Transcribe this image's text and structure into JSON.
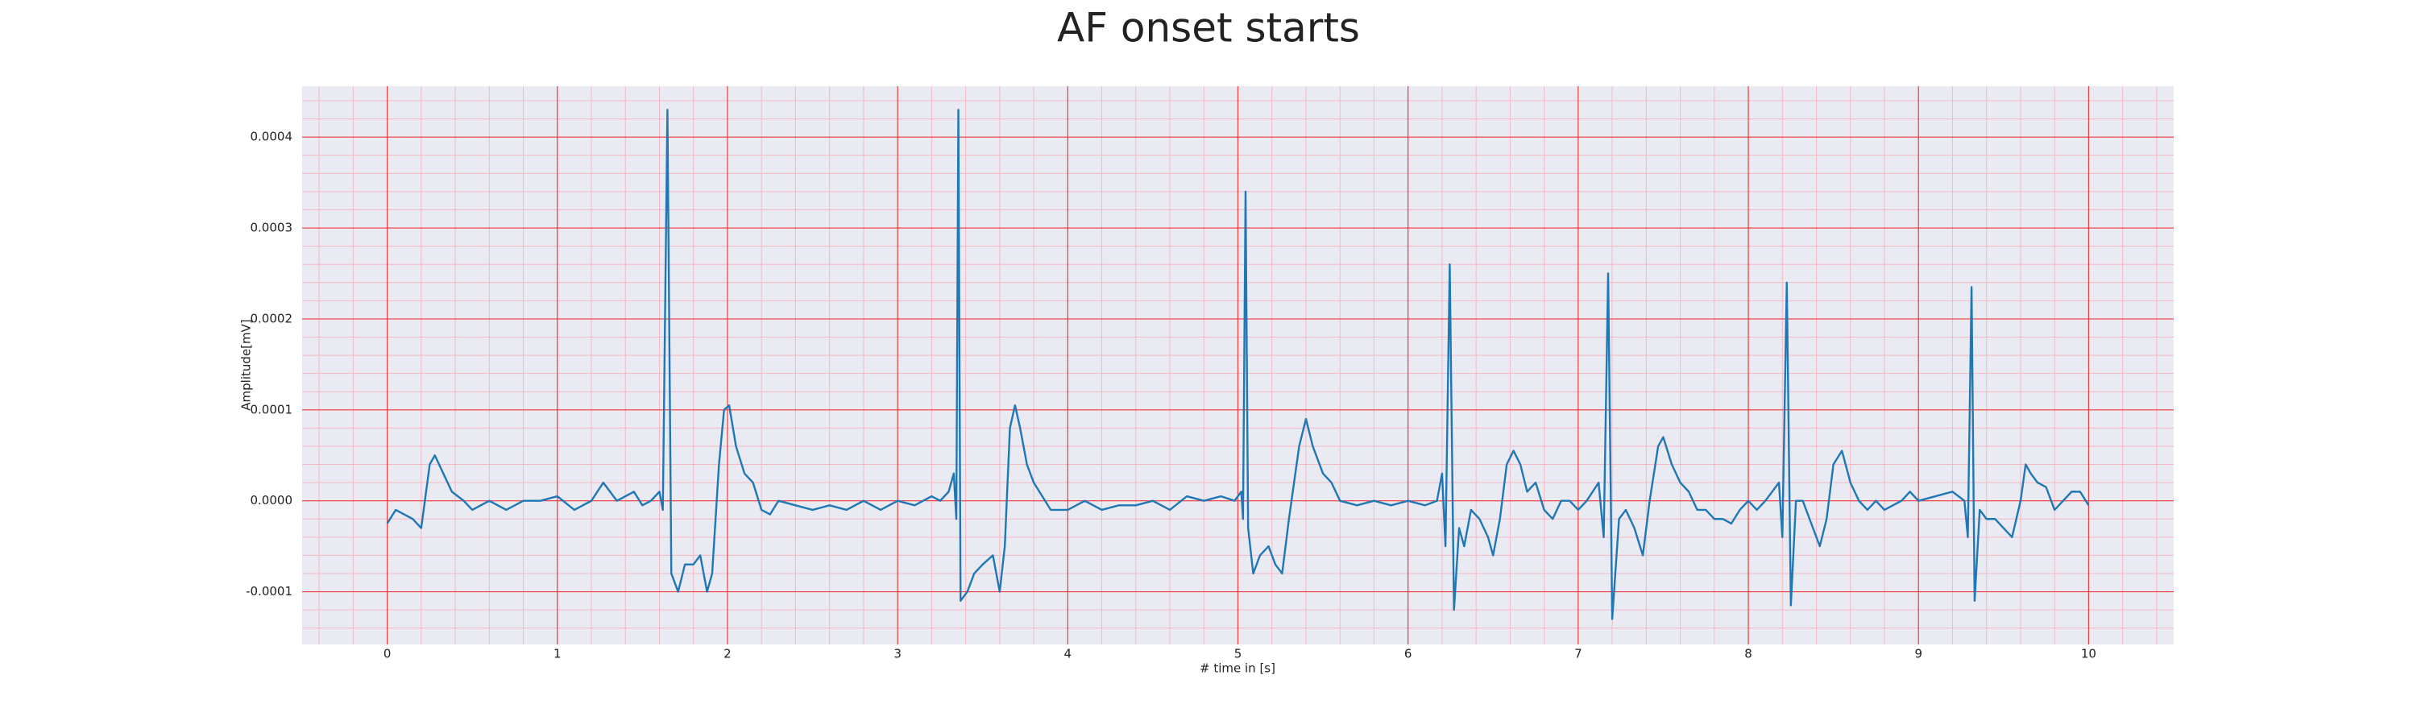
{
  "chart_data": {
    "type": "line",
    "title": "AF onset starts",
    "xlabel": "# time in [s]",
    "ylabel": "Amplitude[mV]",
    "x": [
      0,
      0.05,
      0.1,
      0.15,
      0.2,
      0.25,
      0.28,
      0.33,
      0.38,
      0.45,
      0.5,
      0.6,
      0.7,
      0.8,
      0.9,
      1.0,
      1.1,
      1.2,
      1.27,
      1.35,
      1.45,
      1.5,
      1.55,
      1.6,
      1.62,
      1.647,
      1.67,
      1.71,
      1.75,
      1.8,
      1.84,
      1.88,
      1.91,
      1.95,
      1.98,
      2.01,
      2.05,
      2.1,
      2.15,
      2.2,
      2.25,
      2.3,
      2.4,
      2.5,
      2.6,
      2.7,
      2.8,
      2.9,
      3.0,
      3.1,
      3.2,
      3.25,
      3.3,
      3.33,
      3.345,
      3.357,
      3.37,
      3.41,
      3.45,
      3.5,
      3.56,
      3.6,
      3.63,
      3.66,
      3.69,
      3.72,
      3.76,
      3.8,
      3.85,
      3.9,
      4.0,
      4.1,
      4.2,
      4.3,
      4.4,
      4.5,
      4.6,
      4.7,
      4.8,
      4.9,
      4.98,
      5.02,
      5.03,
      5.045,
      5.06,
      5.09,
      5.13,
      5.18,
      5.22,
      5.26,
      5.3,
      5.36,
      5.4,
      5.44,
      5.5,
      5.55,
      5.6,
      5.7,
      5.8,
      5.9,
      6.0,
      6.1,
      6.17,
      6.2,
      6.22,
      6.245,
      6.27,
      6.3,
      6.33,
      6.37,
      6.42,
      6.47,
      6.5,
      6.54,
      6.58,
      6.62,
      6.66,
      6.7,
      6.75,
      6.8,
      6.85,
      6.9,
      6.95,
      7.0,
      7.05,
      7.12,
      7.15,
      7.176,
      7.2,
      7.24,
      7.28,
      7.33,
      7.38,
      7.42,
      7.47,
      7.5,
      7.55,
      7.6,
      7.65,
      7.7,
      7.75,
      7.8,
      7.85,
      7.9,
      7.95,
      8.0,
      8.05,
      8.1,
      8.18,
      8.2,
      8.226,
      8.25,
      8.28,
      8.32,
      8.36,
      8.42,
      8.46,
      8.5,
      8.55,
      8.6,
      8.65,
      8.7,
      8.75,
      8.8,
      8.9,
      8.95,
      9.0,
      9.1,
      9.2,
      9.27,
      9.29,
      9.312,
      9.33,
      9.36,
      9.4,
      9.45,
      9.5,
      9.55,
      9.6,
      9.63,
      9.66,
      9.7,
      9.75,
      9.8,
      9.85,
      9.9,
      9.95,
      10.0
    ],
    "values": [
      -2.5e-05,
      -1e-05,
      -1.5e-05,
      -2e-05,
      -3e-05,
      4e-05,
      5e-05,
      3e-05,
      1e-05,
      0,
      -1e-05,
      0,
      -1e-05,
      0,
      0,
      5e-06,
      -1e-05,
      0,
      2e-05,
      0,
      1e-05,
      -5e-06,
      0,
      1e-05,
      -1e-05,
      0.00043,
      -8e-05,
      -0.0001,
      -7e-05,
      -7e-05,
      -6e-05,
      -0.0001,
      -8e-05,
      4e-05,
      0.0001,
      0.000105,
      6e-05,
      3e-05,
      2e-05,
      -1e-05,
      -1.5e-05,
      0,
      -5e-06,
      -1e-05,
      -5e-06,
      -1e-05,
      0,
      -1e-05,
      0,
      -5e-06,
      5e-06,
      0,
      1e-05,
      3e-05,
      -2e-05,
      0.00043,
      -0.00011,
      -0.0001,
      -8e-05,
      -7e-05,
      -6e-05,
      -0.0001,
      -5e-05,
      8e-05,
      0.000105,
      8e-05,
      4e-05,
      2e-05,
      5e-06,
      -1e-05,
      -1e-05,
      0,
      -1e-05,
      -5e-06,
      -5e-06,
      0,
      -1e-05,
      5e-06,
      0,
      5e-06,
      0,
      1e-05,
      -2e-05,
      0.00034,
      -3e-05,
      -8e-05,
      -6e-05,
      -5e-05,
      -7e-05,
      -8e-05,
      -2e-05,
      6e-05,
      9e-05,
      6e-05,
      3e-05,
      2e-05,
      0,
      -5e-06,
      0,
      -5e-06,
      0,
      -5e-06,
      0,
      3e-05,
      -5e-05,
      0.00026,
      -0.00012,
      -3e-05,
      -5e-05,
      -1e-05,
      -2e-05,
      -4e-05,
      -6e-05,
      -2e-05,
      4e-05,
      5.5e-05,
      4e-05,
      1e-05,
      2e-05,
      -1e-05,
      -2e-05,
      0,
      0,
      -1e-05,
      0,
      2e-05,
      -4e-05,
      0.00025,
      -0.00013,
      -2e-05,
      -1e-05,
      -3e-05,
      -6e-05,
      0,
      6e-05,
      7e-05,
      4e-05,
      2e-05,
      1e-05,
      -1e-05,
      -1e-05,
      -2e-05,
      -2e-05,
      -2.5e-05,
      -1e-05,
      0,
      -1e-05,
      0,
      2e-05,
      -4e-05,
      0.00024,
      -0.000115,
      0,
      0,
      -2e-05,
      -5e-05,
      -2e-05,
      4e-05,
      5.5e-05,
      2e-05,
      0,
      -1e-05,
      0,
      -1e-05,
      0,
      1e-05,
      0,
      5e-06,
      1e-05,
      0,
      -4e-05,
      0.000235,
      -0.00011,
      -1e-05,
      -2e-05,
      -2e-05,
      -3e-05,
      -4e-05,
      0,
      4e-05,
      3e-05,
      2e-05,
      1.5e-05,
      -1e-05,
      0,
      1e-05,
      1e-05,
      -5e-06
    ],
    "color": "#1f77b4",
    "xlim": [
      -0.5,
      10.5
    ],
    "xticks": [
      0,
      1,
      2,
      3,
      4,
      5,
      6,
      7,
      8,
      9,
      10
    ],
    "ylim": [
      -0.000158,
      0.000456
    ],
    "yticks": [
      -0.0001,
      {
        "value": 0,
        "label": "0.0000"
      },
      0.0001,
      0.0002,
      0.0003,
      0.0004
    ],
    "grid": true,
    "minor_grid": true
  }
}
